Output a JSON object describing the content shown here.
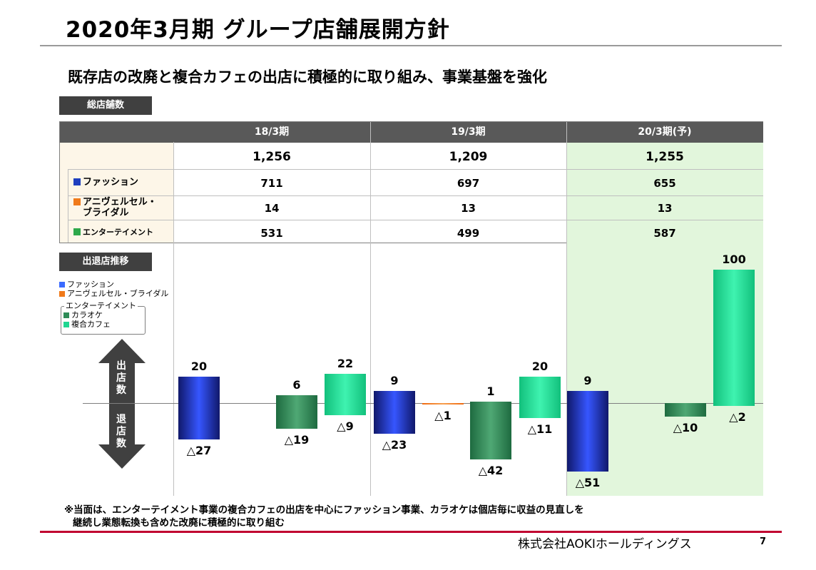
{
  "title": "2020年3月期 グループ店舗展開方針",
  "subtitle": "既存店の改廃と複合カフェの出店に積極的に取り組み、事業基盤を強化",
  "section_total": "総店舗数",
  "section_movement": "出退店推移",
  "colors": {
    "fashion": "#1f3fbf",
    "bridal": "#f07a1a",
    "karaoke": "#2e8b57",
    "cafe": "#1fd691",
    "highlight": "#e2f6dc",
    "header": "#595959"
  },
  "table": {
    "columns": [
      "18/3期",
      "19/3期",
      "20/3期(予)"
    ],
    "total": [
      "1,256",
      "1,209",
      "1,255"
    ],
    "rows": [
      {
        "label": "ファッション",
        "color": "#1f3fbf",
        "values": [
          "711",
          "697",
          "655"
        ]
      },
      {
        "label_line1": "アニヴェルセル・",
        "label_line2": "ブライダル",
        "color": "#f07a1a",
        "values": [
          "14",
          "13",
          "13"
        ]
      },
      {
        "label": "エンターテイメント",
        "color": "#2e8b57",
        "values": [
          "531",
          "499",
          "587"
        ]
      }
    ]
  },
  "legend": {
    "fashion": "ファッション",
    "bridal": "アニヴェルセル・ブライダル",
    "entertainment": "エンターテイメント",
    "karaoke": "カラオケ",
    "cafe": "複合カフェ"
  },
  "arrow": {
    "up": "出店数",
    "down": "退店数"
  },
  "chart_data": {
    "type": "bar",
    "categories": [
      "18/3期",
      "19/3期",
      "20/3期(予)"
    ],
    "series": [
      {
        "name": "ファッション",
        "open": [
          20,
          9,
          9
        ],
        "close": [
          27,
          23,
          51
        ],
        "open_labels": [
          "20",
          "9",
          "9"
        ],
        "close_labels": [
          "△27",
          "△23",
          "△51"
        ]
      },
      {
        "name": "アニヴェルセル・ブライダル",
        "open": [
          0,
          0,
          0
        ],
        "close": [
          0,
          1,
          0
        ],
        "open_labels": [
          "",
          "",
          ""
        ],
        "close_labels": [
          "",
          "△1",
          ""
        ]
      },
      {
        "name": "カラオケ",
        "open": [
          6,
          1,
          0
        ],
        "close": [
          19,
          42,
          10
        ],
        "open_labels": [
          "6",
          "1",
          ""
        ],
        "close_labels": [
          "△19",
          "△42",
          "△10"
        ]
      },
      {
        "name": "複合カフェ",
        "open": [
          22,
          20,
          100
        ],
        "close": [
          9,
          11,
          2
        ],
        "open_labels": [
          "22",
          "20",
          "100"
        ],
        "close_labels": [
          "△9",
          "△11",
          "△2"
        ]
      }
    ]
  },
  "footnote": {
    "line1": "※当面は、エンターテイメント事業の複合カフェの出店を中心にファッション事業、カラオケは個店毎に収益の見直しを",
    "line2": "継続し業態転換も含めた改廃に積極的に取り組む"
  },
  "company": "株式会社AOKIホールディングス",
  "page_number": "7"
}
